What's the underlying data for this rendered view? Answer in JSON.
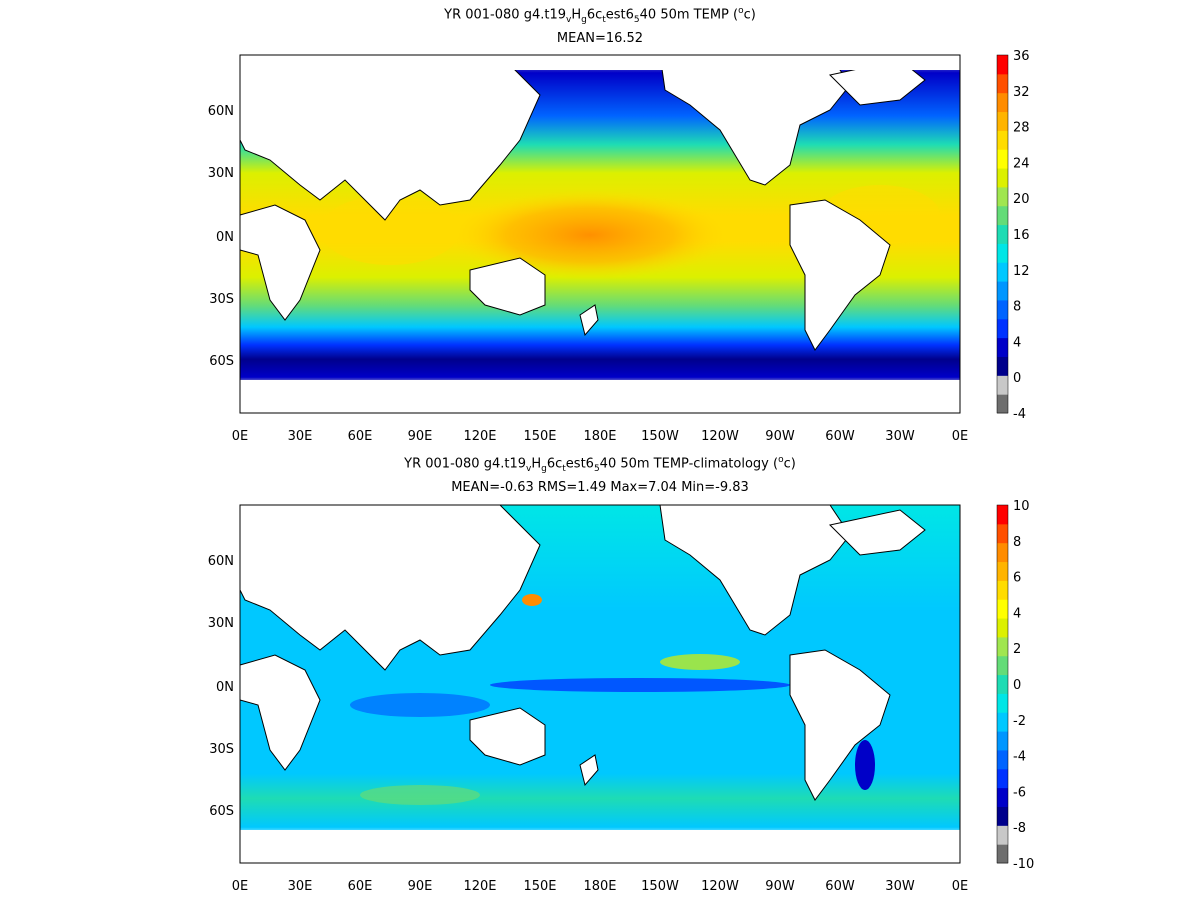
{
  "chart_data": [
    {
      "type": "heatmap",
      "title_parts": {
        "pre": "YR 001-080 g4.t19",
        "s1": "v",
        "mid1": "H",
        "s2": "g",
        "mid2": "6c",
        "s3": "t",
        "mid3": "est6",
        "s4": "5",
        "post": "40 50m TEMP (",
        "sup": "o",
        "unit": "c)"
      },
      "subtitle": "MEAN=16.52",
      "x_ticks": [
        "0E",
        "30E",
        "60E",
        "90E",
        "120E",
        "150E",
        "180E",
        "150W",
        "120W",
        "90W",
        "60W",
        "30W",
        "0E"
      ],
      "y_ticks": [
        "60N",
        "30N",
        "0N",
        "30S",
        "60S"
      ],
      "colorbar": {
        "ticks": [
          "36",
          "32",
          "28",
          "24",
          "20",
          "16",
          "12",
          "8",
          "4",
          "0",
          "-4"
        ],
        "colors_bottom_to_top": [
          "#6e6e6e",
          "#c8c8c8",
          "#00008c",
          "#0000c8",
          "#0032ff",
          "#0064ff",
          "#0096ff",
          "#00c8ff",
          "#00e6e6",
          "#1edcb4",
          "#64dc78",
          "#a0e650",
          "#dcf000",
          "#ffff00",
          "#ffdc00",
          "#ffb400",
          "#ff8c00",
          "#ff5000",
          "#ff0000"
        ]
      }
    },
    {
      "type": "heatmap",
      "title_parts": {
        "pre": "YR 001-080 g4.t19",
        "s1": "v",
        "mid1": "H",
        "s2": "g",
        "mid2": "6c",
        "s3": "t",
        "mid3": "est6",
        "s4": "5",
        "post": "40 50m TEMP-climatology (",
        "sup": "o",
        "unit": "c)"
      },
      "subtitle": "MEAN=-0.63   RMS=1.49   Max=7.04   Min=-9.83",
      "x_ticks": [
        "0E",
        "30E",
        "60E",
        "90E",
        "120E",
        "150E",
        "180E",
        "150W",
        "120W",
        "90W",
        "60W",
        "30W",
        "0E"
      ],
      "y_ticks": [
        "60N",
        "30N",
        "0N",
        "30S",
        "60S"
      ],
      "colorbar": {
        "ticks": [
          "10",
          "8",
          "6",
          "4",
          "2",
          "0",
          "-2",
          "-4",
          "-6",
          "-8",
          "-10"
        ],
        "colors_bottom_to_top": [
          "#6e6e6e",
          "#c8c8c8",
          "#00008c",
          "#0000c8",
          "#0032ff",
          "#0064ff",
          "#0096ff",
          "#00c8ff",
          "#00e6e6",
          "#1edcb4",
          "#64dc78",
          "#a0e650",
          "#dcf000",
          "#ffff00",
          "#ffdc00",
          "#ffb400",
          "#ff8c00",
          "#ff5000",
          "#ff0000"
        ]
      }
    }
  ],
  "colors": {
    "land": "#ffffff",
    "coast": "#000000",
    "ice": "#c8c8c8"
  }
}
